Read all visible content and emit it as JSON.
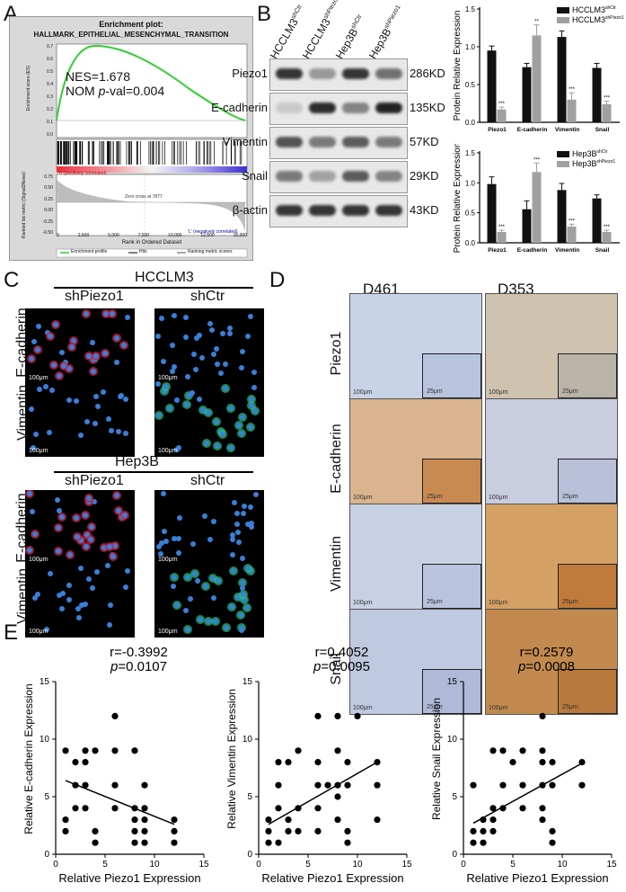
{
  "panels": {
    "a": "A",
    "b": "B",
    "c": "C",
    "d": "D",
    "e": "E"
  },
  "gsea": {
    "title": "Enrichment plot:",
    "subtitle": "HALLMARK_EPITHELIAL_MESENCHYMAL_TRANSITION",
    "nes": "NES=1.678",
    "pval_prefix": "NOM ",
    "pval_italic": "p",
    "pval_rest": "-val=0.004",
    "ylabel_top": "Enrichment score (ES)",
    "ylabel_bottom": "Ranked list metric (Signal2Noise)",
    "xlabel": "Rank in Ordered Dataset",
    "pos_label": "'h' (positively correlated)",
    "neg_label": "'L' (negatively correlated)",
    "zero_cross": "Zero cross at 7877",
    "legend": [
      "Enrichment profile",
      "Hits",
      "Ranking metric scores"
    ],
    "yticks_top": [
      "0.7",
      "0.6",
      "0.5",
      "0.4",
      "0.3",
      "0.2",
      "0.1",
      "0.0"
    ],
    "yticks_bottom": [
      "0.75",
      "0.50",
      "0.25",
      "0.00",
      "-0.25",
      "-0.50"
    ],
    "xticks": [
      "0",
      "2,500",
      "5,000",
      "7,500",
      "10,000",
      "12,500",
      "15,000"
    ]
  },
  "western": {
    "lanes": [
      "HCCLM3shCtr",
      "HCCLM3shPiezo1",
      "Hep3BshCtr",
      "Hep3BshPiezo1"
    ],
    "lane_base": [
      "HCCLM3",
      "HCCLM3",
      "Hep3B",
      "Hep3B"
    ],
    "lane_sup": [
      "shCtr",
      "shPiezo1",
      "shCtr",
      "shPiezo1"
    ],
    "proteins": [
      "Piezo1",
      "E-cadherin",
      "Vimentin",
      "Snail",
      "β-actin"
    ],
    "sizes": [
      "286KD",
      "135KD",
      "57KD",
      "29KD",
      "43KD"
    ]
  },
  "chart_data": [
    {
      "type": "bar",
      "categories": [
        "Piezo1",
        "E-cadherin",
        "Vimentin",
        "Snail"
      ],
      "series": [
        {
          "name": "HCCLM3shCtr",
          "values": [
            0.95,
            0.73,
            1.13,
            0.72
          ],
          "errors": [
            0.06,
            0.05,
            0.08,
            0.06
          ],
          "color": "#111111"
        },
        {
          "name": "HCCLM3shPiezo1",
          "values": [
            0.17,
            1.15,
            0.3,
            0.24
          ],
          "errors": [
            0.03,
            0.14,
            0.09,
            0.04
          ],
          "color": "#a0a0a0"
        }
      ],
      "significance": [
        "***",
        "**",
        "***",
        "***"
      ],
      "ylabel": "Protein Relative Expression",
      "ylim": [
        0,
        1.5
      ],
      "yticks": [
        "0.0",
        "0.5",
        "1.0",
        "1.5"
      ],
      "legend": [
        {
          "base": "HCCLM3",
          "sup": "shCtr"
        },
        {
          "base": "HCCLM3",
          "sup": "shPiezo1"
        }
      ]
    },
    {
      "type": "bar",
      "categories": [
        "Piezo1",
        "E-cadherin",
        "Vimentin",
        "Snail"
      ],
      "series": [
        {
          "name": "Hep3BshCtr",
          "values": [
            0.98,
            0.56,
            0.88,
            0.74
          ],
          "errors": [
            0.12,
            0.14,
            0.11,
            0.06
          ],
          "color": "#111111"
        },
        {
          "name": "Hep3BshPiezo1",
          "values": [
            0.18,
            1.18,
            0.27,
            0.18
          ],
          "errors": [
            0.03,
            0.15,
            0.04,
            0.03
          ],
          "color": "#a0a0a0"
        }
      ],
      "significance": [
        "***",
        "***",
        "***",
        "***"
      ],
      "ylabel": "Protein Relative Expression",
      "ylim": [
        0,
        1.5
      ],
      "yticks": [
        "0.0",
        "0.5",
        "1.0",
        "1.5"
      ],
      "legend": [
        {
          "base": "Hep3B",
          "sup": "shCtr"
        },
        {
          "base": "Hep3B",
          "sup": "shPiezo1"
        }
      ]
    },
    {
      "type": "scatter",
      "r_text": "r=-0.3992",
      "p_italic": "p",
      "p_rest": "=0.0107",
      "xlabel": "Relative Piezo1 Expression",
      "ylabel": "Relative E-cadherin Expression",
      "xlim": [
        0,
        15
      ],
      "ylim": [
        0,
        15
      ],
      "xticks": [
        "0",
        "5",
        "10",
        "15"
      ],
      "yticks": [
        "0",
        "5",
        "10",
        "15"
      ],
      "x": [
        1,
        1,
        1,
        2,
        2,
        2,
        3,
        3,
        3,
        3,
        4,
        4,
        4,
        6,
        6,
        6,
        6,
        8,
        8,
        8,
        8,
        8,
        9,
        9,
        9,
        9,
        9,
        12,
        12,
        12
      ],
      "y": [
        9,
        3,
        2,
        8,
        6,
        4,
        9,
        8,
        6,
        4,
        9,
        2,
        1,
        12,
        9,
        6,
        4,
        9,
        4,
        3,
        2,
        1,
        6,
        4,
        3,
        2,
        1,
        3,
        2,
        1
      ],
      "fit": [
        [
          1,
          6.4
        ],
        [
          12,
          2.6
        ]
      ]
    },
    {
      "type": "scatter",
      "r_text": "r=0.4052",
      "p_italic": "p",
      "p_rest": "=0.0095",
      "xlabel": "Relative Piezo1 Expression",
      "ylabel": "Relative Vimentin Expression",
      "xlim": [
        0,
        15
      ],
      "ylim": [
        0,
        15
      ],
      "xticks": [
        "0",
        "5",
        "10",
        "15"
      ],
      "yticks": [
        "0",
        "5",
        "10",
        "15"
      ],
      "x": [
        1,
        1,
        1,
        2,
        2,
        2,
        2,
        3,
        3,
        3,
        4,
        4,
        4,
        6,
        6,
        6,
        6,
        6,
        7,
        8,
        8,
        8,
        8,
        8,
        9,
        9,
        9,
        9,
        10,
        12,
        12,
        12
      ],
      "y": [
        3,
        2,
        1,
        8,
        6,
        4,
        1,
        8,
        3,
        2,
        9,
        4,
        2,
        12,
        8,
        6,
        4,
        2,
        6,
        12,
        9,
        6,
        5,
        3,
        8,
        6,
        2,
        1,
        12,
        8,
        6,
        3
      ],
      "fit": [
        [
          1,
          2.6
        ],
        [
          12,
          8.0
        ]
      ]
    },
    {
      "type": "scatter",
      "r_text": "r=0.2579",
      "p_italic": "p",
      "p_rest": "=0.0008",
      "xlabel": "Relative Piezo1 Expression",
      "ylabel": "Relative Snail Expression",
      "xlim": [
        0,
        15
      ],
      "ylim": [
        0,
        15
      ],
      "xticks": [
        "0",
        "5",
        "10",
        "15"
      ],
      "yticks": [
        "0",
        "5",
        "10",
        "15"
      ],
      "x": [
        1,
        1,
        1,
        2,
        2,
        2,
        3,
        3,
        3,
        3,
        4,
        4,
        4,
        5,
        6,
        6,
        6,
        8,
        8,
        8,
        8,
        8,
        8,
        9,
        9,
        9,
        9,
        12,
        12
      ],
      "y": [
        6,
        2,
        1,
        3,
        2,
        1,
        9,
        4,
        3,
        2,
        9,
        6,
        4,
        8,
        9,
        6,
        4,
        12,
        9,
        8,
        6,
        4,
        3,
        8,
        6,
        2,
        1,
        8,
        6
      ],
      "fit": [
        [
          1,
          2.7
        ],
        [
          12,
          7.9
        ]
      ]
    }
  ],
  "if": {
    "group1": "HCCLM3",
    "group2": "Hep3B",
    "cols": [
      "shPiezo1",
      "shCtr"
    ],
    "rows": [
      "E-cadherin",
      "Vimentin"
    ],
    "scale": "100μm"
  },
  "ihc": {
    "cols": [
      "D461",
      "D353"
    ],
    "rows": [
      "Piezo1",
      "E-cadherin",
      "Vimentin",
      "Snail"
    ],
    "scale_main": "100μm",
    "scale_inset": "25μm"
  }
}
